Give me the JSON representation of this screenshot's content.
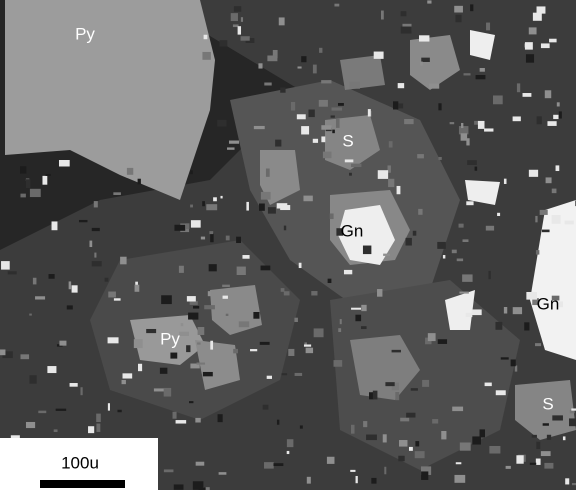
{
  "labels": [
    "Py",
    "S",
    "Gn",
    "Gn",
    "Py",
    "S"
  ],
  "scale_bar": {
    "label": "100u"
  }
}
